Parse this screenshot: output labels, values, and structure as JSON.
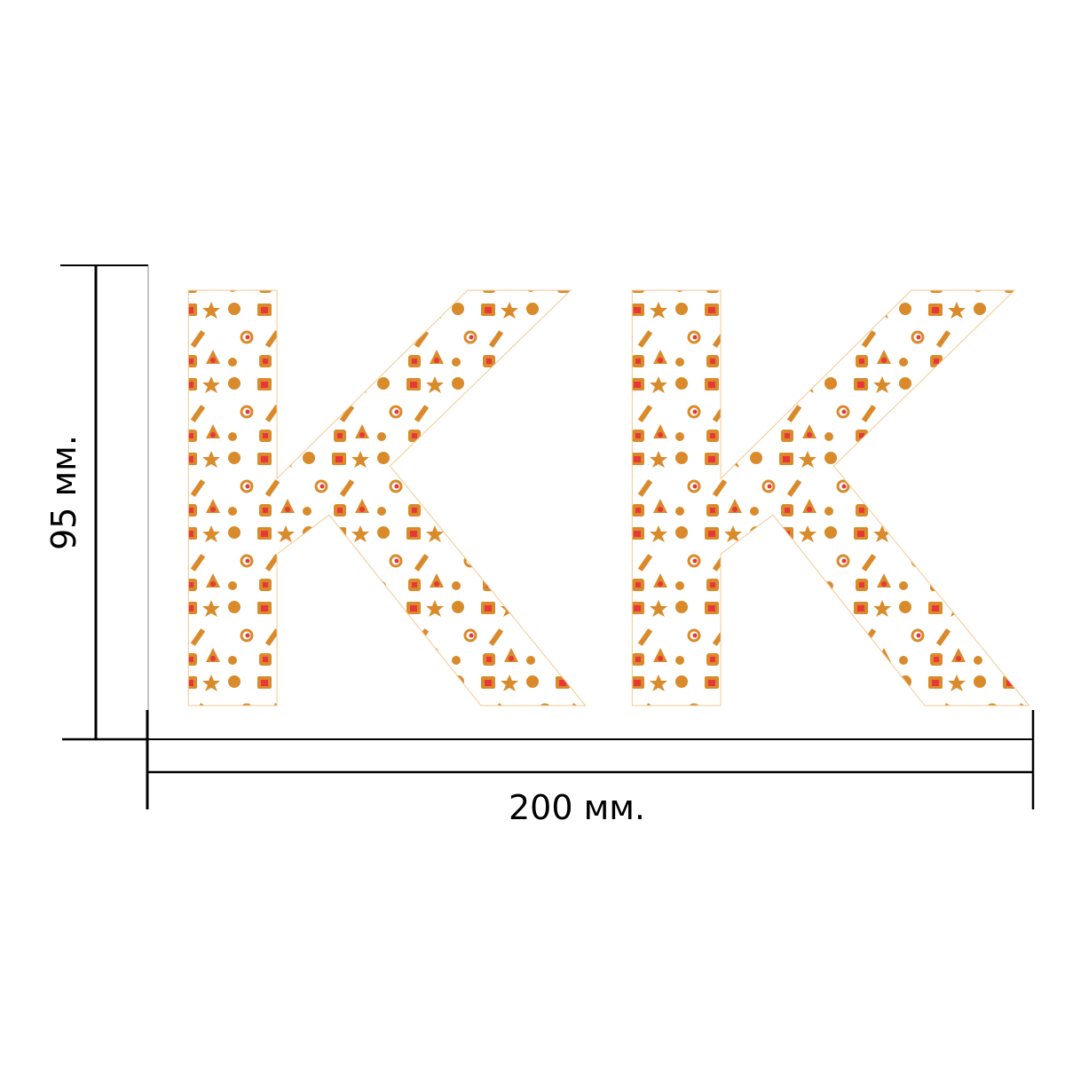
{
  "letters": "KK",
  "dimensions": {
    "width_label": "200 мм.",
    "height_label": "95 мм."
  },
  "pattern": {
    "motif": "gingerbread christmas icons",
    "colors": {
      "gingerbread": "#d98a2b",
      "accent": "#e8363a",
      "line": "#000000"
    }
  }
}
